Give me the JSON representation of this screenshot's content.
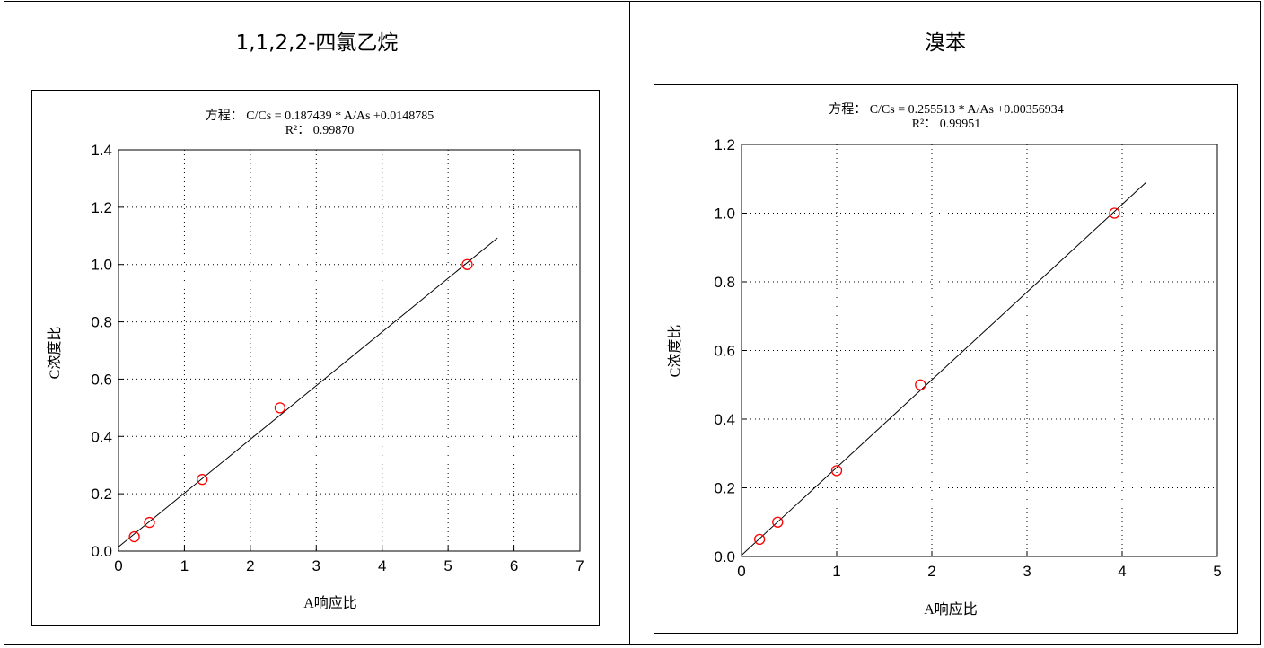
{
  "charts": {
    "left": {
      "title": "1,1,2,2-四氯乙烷",
      "equation": "方程：  C/Cs = 0.187439 * A/As +0.0148785",
      "r2": "R²：  0.99870",
      "xlabel": "A响应比",
      "ylabel": "C浓度比"
    },
    "right": {
      "title": "溴苯",
      "equation": "方程：  C/Cs = 0.255513 * A/As +0.00356934",
      "r2": "R²：  0.99951",
      "xlabel": "A响应比",
      "ylabel": "C浓度比"
    }
  },
  "colors": {
    "point": "#ff0000",
    "line": "#000000",
    "grid": "#000000"
  },
  "chart_data": [
    {
      "type": "scatter",
      "title": "1,1,2,2-四氯乙烷",
      "xlabel": "A响应比",
      "ylabel": "C浓度比",
      "xlim": [
        0,
        7
      ],
      "ylim": [
        0,
        1.4
      ],
      "xticks": [
        "0",
        "1",
        "2",
        "3",
        "4",
        "5",
        "6",
        "7"
      ],
      "yticks": [
        "0.0",
        "0.2",
        "0.4",
        "0.6",
        "0.8",
        "1.0",
        "1.2",
        "1.4"
      ],
      "points": [
        {
          "x": 0.24,
          "y": 0.05
        },
        {
          "x": 0.47,
          "y": 0.1
        },
        {
          "x": 1.27,
          "y": 0.25
        },
        {
          "x": 2.45,
          "y": 0.5
        },
        {
          "x": 5.29,
          "y": 1.0
        }
      ],
      "fit": {
        "slope": 0.187439,
        "intercept": 0.0148785,
        "x_range": [
          0,
          5.75
        ]
      },
      "grid": true
    },
    {
      "type": "scatter",
      "title": "溴苯",
      "xlabel": "A响应比",
      "ylabel": "C浓度比",
      "xlim": [
        0,
        5
      ],
      "ylim": [
        0,
        1.2
      ],
      "xticks": [
        "0",
        "1",
        "2",
        "3",
        "4",
        "5"
      ],
      "yticks": [
        "0.0",
        "0.2",
        "0.4",
        "0.6",
        "0.8",
        "1.0",
        "1.2"
      ],
      "points": [
        {
          "x": 0.19,
          "y": 0.05
        },
        {
          "x": 0.38,
          "y": 0.1
        },
        {
          "x": 1.0,
          "y": 0.25
        },
        {
          "x": 1.88,
          "y": 0.5
        },
        {
          "x": 3.92,
          "y": 1.0
        }
      ],
      "fit": {
        "slope": 0.255513,
        "intercept": 0.00356934,
        "x_range": [
          0,
          4.25
        ]
      },
      "grid": true
    }
  ]
}
